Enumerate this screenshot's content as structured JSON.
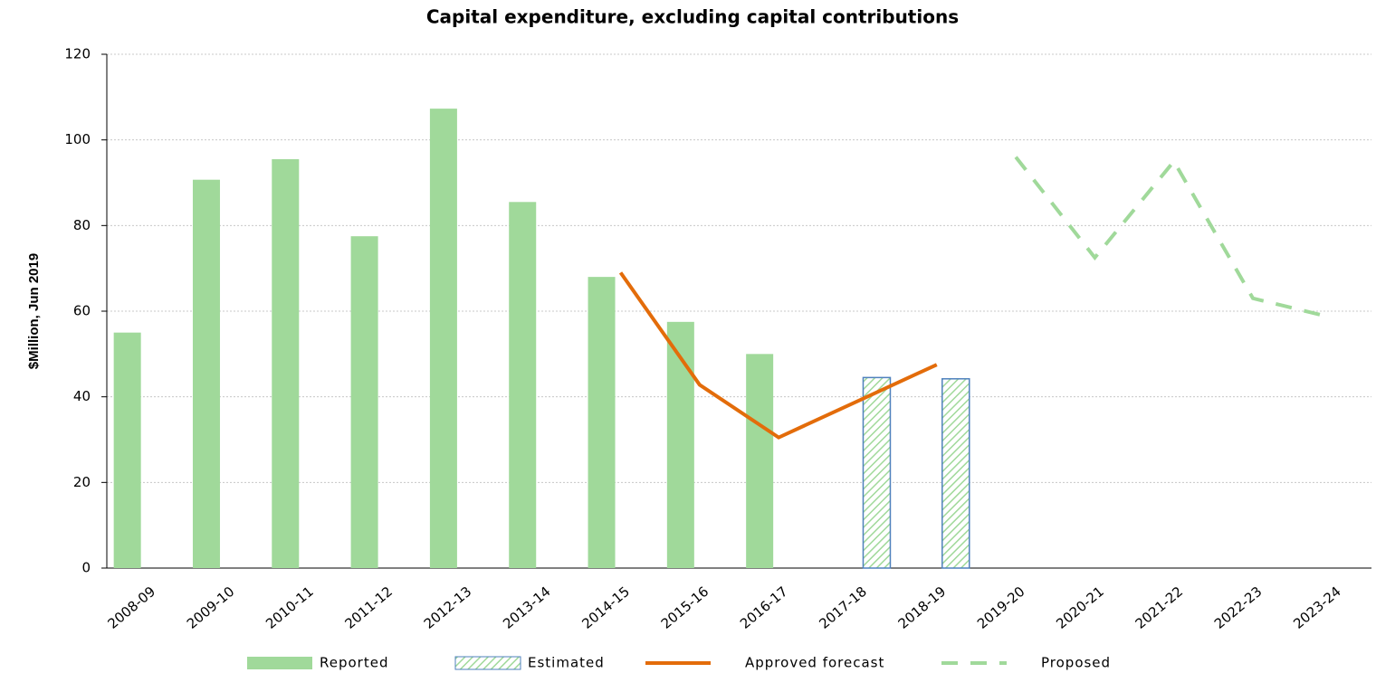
{
  "chart_data": {
    "type": "bar",
    "title": "Capital expenditure, excluding capital contributions",
    "y_label": "$Million, Jun 2019",
    "categories": [
      "2008-09",
      "2009-10",
      "2010-11",
      "2011-12",
      "2012-13",
      "2013-14",
      "2014-15",
      "2015-16",
      "2016-17",
      "2017-18",
      "2018-19",
      "2019-20",
      "2020-21",
      "2021-22",
      "2022-23",
      "2023-24"
    ],
    "series": [
      {
        "name": "Reported",
        "type": "bar",
        "color": "#a0d99a",
        "values": [
          55,
          90.7,
          95.5,
          77.5,
          107.3,
          85.5,
          68,
          57.5,
          50,
          null,
          null,
          null,
          null,
          null,
          null,
          null
        ]
      },
      {
        "name": "Estimated",
        "type": "bar",
        "color": "#a0d99a",
        "border": "#4f81bd",
        "hatch": true,
        "values": [
          null,
          null,
          null,
          null,
          null,
          null,
          null,
          null,
          null,
          44.5,
          44.2,
          null,
          null,
          null,
          null,
          null
        ]
      },
      {
        "name": "Approved forecast",
        "type": "line",
        "color": "#e36c0a",
        "values": [
          null,
          null,
          null,
          null,
          null,
          null,
          69,
          42.8,
          30.5,
          39,
          47.5,
          null,
          null,
          null,
          null,
          null
        ]
      },
      {
        "name": "Proposed",
        "type": "line",
        "color": "#a0d99a",
        "dashed": true,
        "values": [
          null,
          null,
          null,
          null,
          null,
          null,
          null,
          null,
          null,
          null,
          null,
          96,
          72.5,
          95,
          63,
          58.5
        ]
      }
    ],
    "ylim": [
      0,
      120
    ],
    "yticks": [
      0,
      20,
      40,
      60,
      80,
      100,
      120
    ],
    "grid": true,
    "legend": "bottom"
  }
}
